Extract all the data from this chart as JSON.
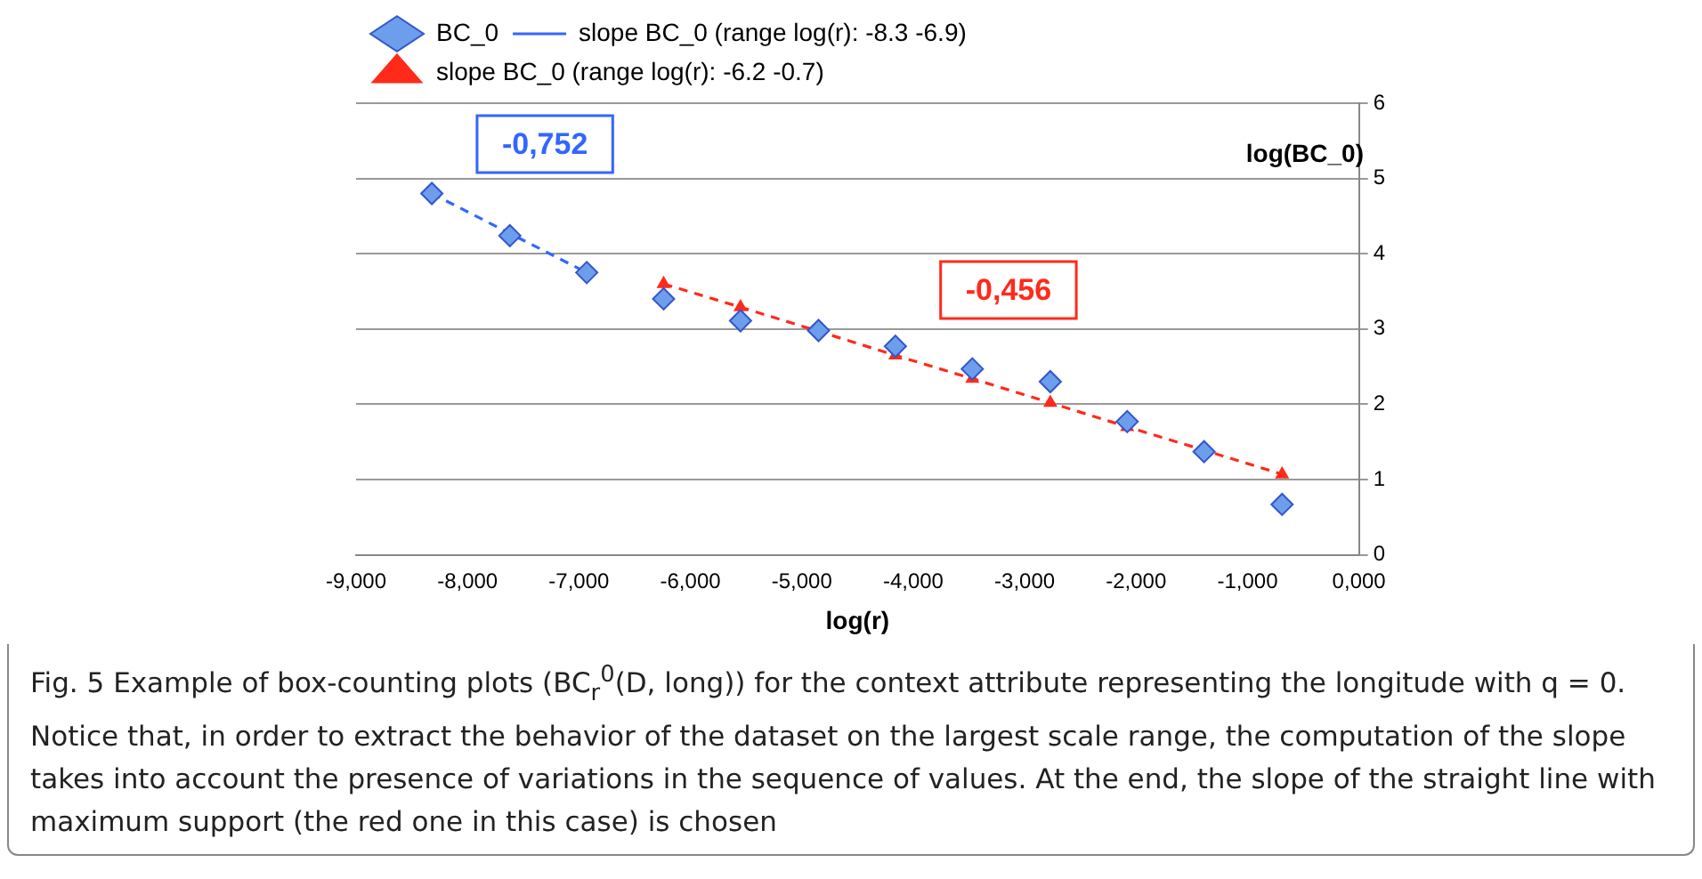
{
  "chart_data": {
    "type": "scatter",
    "xlabel": "log(r)",
    "ylabel": "log(BC_0)",
    "xlim": [
      -9,
      0
    ],
    "xticks": [
      {
        "value": -9,
        "label": "-9,000"
      },
      {
        "value": -8,
        "label": "-8,000"
      },
      {
        "value": -7,
        "label": "-7,000"
      },
      {
        "value": -6,
        "label": "-6,000"
      },
      {
        "value": -5,
        "label": "-5,000"
      },
      {
        "value": -4,
        "label": "-4,000"
      },
      {
        "value": -3,
        "label": "-3,000"
      },
      {
        "value": -2,
        "label": "-2,000"
      },
      {
        "value": -1,
        "label": "-1,000"
      },
      {
        "value": 0,
        "label": "0,000"
      }
    ],
    "ylim": [
      0,
      6
    ],
    "yticks": [
      0,
      1,
      2,
      3,
      4,
      5,
      6
    ],
    "grid": "y",
    "legend": "top left",
    "series": [
      {
        "name": "BC_0",
        "marker": "diamond",
        "color": "#6d9eeb",
        "x": [
          -8.32,
          -7.62,
          -6.93,
          -6.24,
          -5.55,
          -4.85,
          -4.16,
          -3.47,
          -2.77,
          -2.08,
          -1.39,
          -0.69
        ],
        "values": [
          4.8,
          4.24,
          3.75,
          3.4,
          3.11,
          2.98,
          2.77,
          2.47,
          2.3,
          1.77,
          1.37,
          0.67
        ]
      },
      {
        "name": "slope BC_0 (range log(r): -8.3 -6.9)",
        "type": "line",
        "marker": "none",
        "line_style": "dashed",
        "color": "#3366ff",
        "x": [
          -8.32,
          -7.62,
          -6.93
        ],
        "values": [
          4.8,
          4.27,
          3.75
        ]
      },
      {
        "name": "slope BC_0 (range log(r): -6.2 -0.7)",
        "type": "line",
        "marker": "triangle",
        "line_style": "dashed",
        "color": "#ff2a1a",
        "x": [
          -6.24,
          -5.55,
          -4.85,
          -4.16,
          -3.47,
          -2.77,
          -2.08,
          -1.39,
          -0.69
        ],
        "values": [
          3.6,
          3.29,
          2.97,
          2.65,
          2.34,
          2.02,
          1.7,
          1.39,
          1.07
        ]
      }
    ],
    "annotations": [
      "-0,752",
      "-0,456",
      "Fig. 5  Example of box-counting plots (BC$_{r}$$^{0}$(D, long)) for the context attribute representing the longitude with q = 0. Notice that, in order to extract the behavior of the dataset on the largest scale range, the computation of the slope takes into account the presence of variations in the sequence of values. At the end, the slope of the straight line with maximum support (the red one in this case) is chosen"
    ]
  }
}
